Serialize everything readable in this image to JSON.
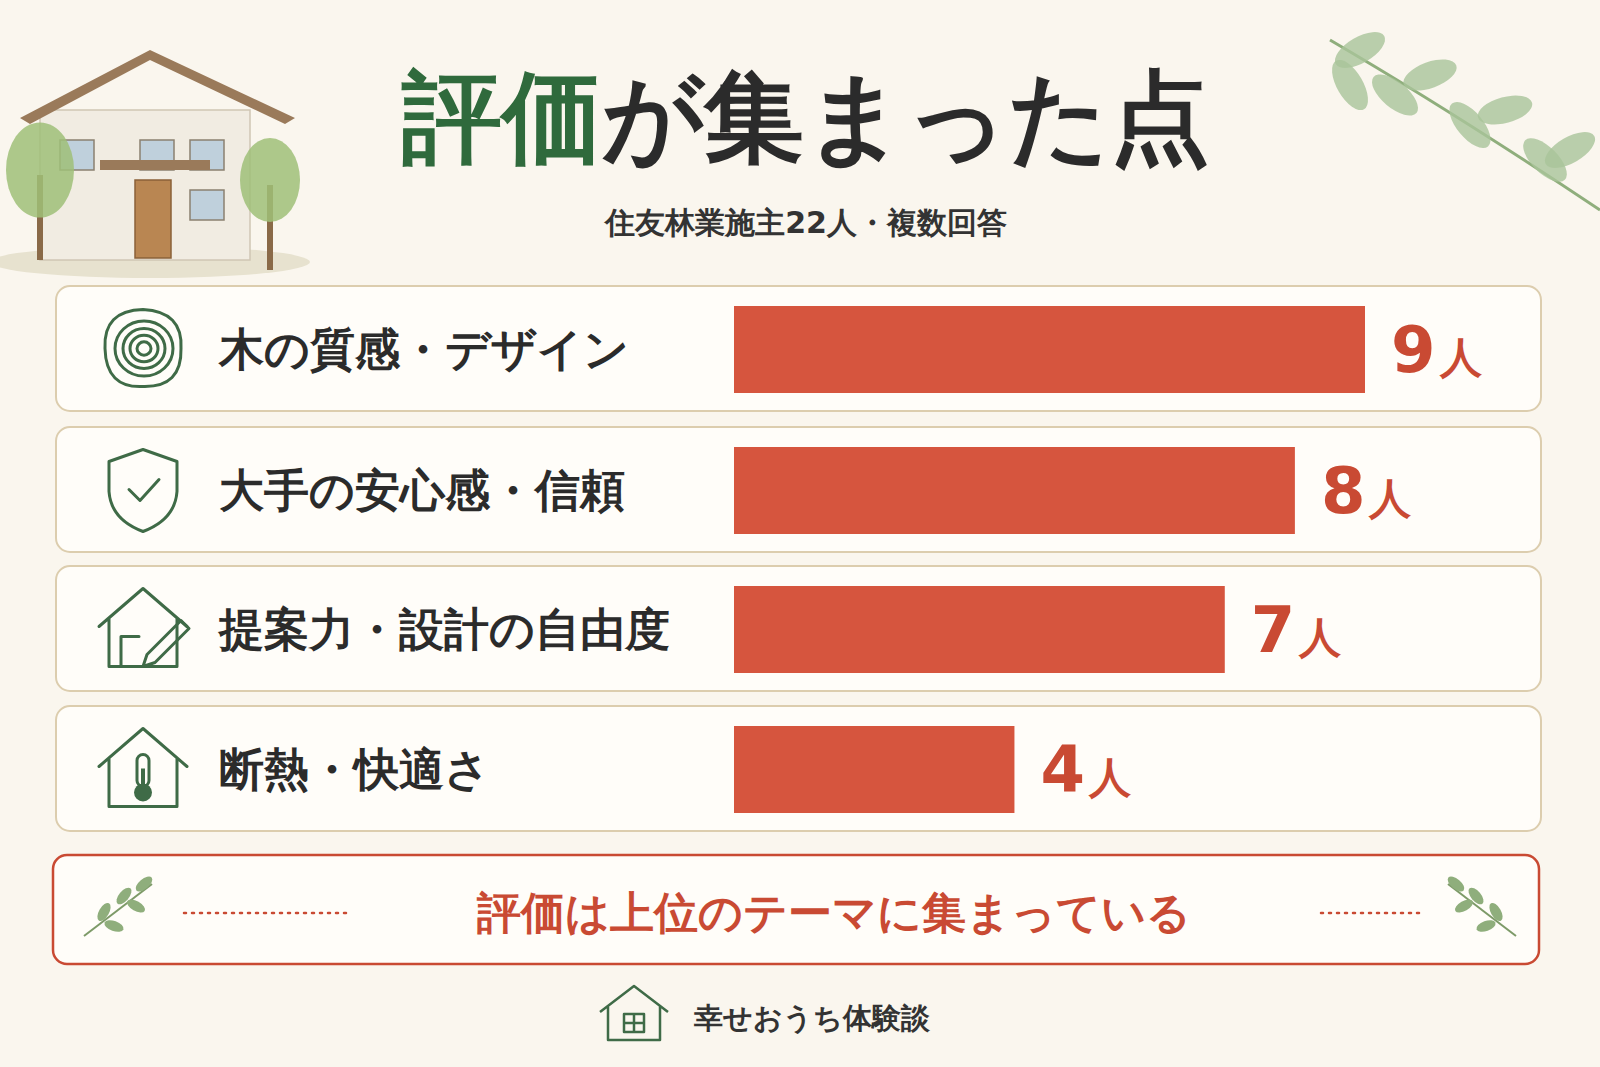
{
  "chart_data": {
    "type": "bar",
    "orientation": "horizontal",
    "title": "評価が集まった点",
    "subtitle": "住友林業施主22人・複数回答",
    "categories": [
      "木の質感・デザイン",
      "大手の安心感・信頼",
      "提案力・設計の自由度",
      "断熱・快適さ"
    ],
    "values": [
      9,
      8,
      7,
      4
    ],
    "value_labels": [
      "9人",
      "8人",
      "7人",
      "4人"
    ],
    "data_labels": true,
    "tick_labels": "y",
    "color": "#d6553e",
    "xlim": [
      0,
      9
    ],
    "annotations": [
      "評価は上位のテーマに集まっている",
      "幸せおうち体験談"
    ]
  }
}
